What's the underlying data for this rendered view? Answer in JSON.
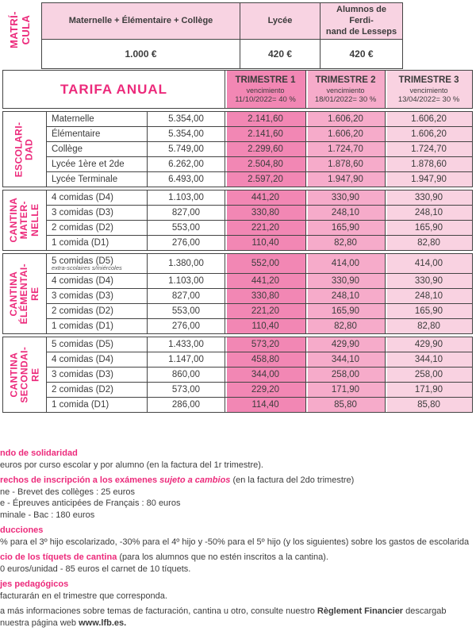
{
  "colors": {
    "brand_pink": "#EC2A7B",
    "t1_bg": "#F287B4",
    "t2_bg": "#F6ABCA",
    "t3_bg": "#F9D2E1",
    "header_bg": "#F8D3E2",
    "border": "#444444",
    "text": "#3C3C3C"
  },
  "matricula": {
    "label": "MATRÍ-\nCULA",
    "columns": [
      "Maternelle + Élémentaire + Collège",
      "Lycée",
      "Alumnos de Ferdi-\nnand de Lesseps"
    ],
    "values": [
      "1.000 €",
      "420 €",
      "420 €"
    ]
  },
  "tarifa": {
    "title": "TARIFA ANUAL",
    "trimesters": [
      {
        "name": "TRIMESTRE 1",
        "due_label": "vencimiento",
        "due": "11/10/2022= 40 %"
      },
      {
        "name": "TRIMESTRE 2",
        "due_label": "vencimiento",
        "due": "18/01/2022= 30 %"
      },
      {
        "name": "TRIMESTRE 3",
        "due_label": "vencimiento",
        "due": "13/04/2022= 30 %"
      }
    ],
    "groups": [
      {
        "label_lines": [
          "ESCOLARI-",
          "DAD"
        ],
        "rows": [
          {
            "label": "Maternelle",
            "annual": "5.354,00",
            "t1": "2.141,60",
            "t2": "1.606,20",
            "t3": "1.606,20"
          },
          {
            "label": "Élémentaire",
            "annual": "5.354,00",
            "t1": "2.141,60",
            "t2": "1.606,20",
            "t3": "1.606,20"
          },
          {
            "label": "Collège",
            "annual": "5.749,00",
            "t1": "2.299,60",
            "t2": "1.724,70",
            "t3": "1.724,70"
          },
          {
            "label": "Lycée 1ère et 2de",
            "annual": "6.262,00",
            "t1": "2.504,80",
            "t2": "1.878,60",
            "t3": "1.878,60"
          },
          {
            "label": "Lycée Terminale",
            "annual": "6.493,00",
            "t1": "2.597,20",
            "t2": "1.947,90",
            "t3": "1.947,90"
          }
        ]
      },
      {
        "label_lines": [
          "CANTINA",
          "MATER-",
          "NELLE"
        ],
        "rows": [
          {
            "label": "4 comidas (D4)",
            "annual": "1.103,00",
            "t1": "441,20",
            "t2": "330,90",
            "t3": "330,90"
          },
          {
            "label": "3 comidas (D3)",
            "annual": "827,00",
            "t1": "330,80",
            "t2": "248,10",
            "t3": "248,10"
          },
          {
            "label": "2 comidas (D2)",
            "annual": "553,00",
            "t1": "221,20",
            "t2": "165,90",
            "t3": "165,90"
          },
          {
            "label": "1 comida (D1)",
            "annual": "276,00",
            "t1": "110,40",
            "t2": "82,80",
            "t3": "82,80"
          }
        ]
      },
      {
        "label_lines": [
          "CANTINA",
          "ÉLÉMENTAI-",
          "RE"
        ],
        "rows": [
          {
            "label": "5 comidas (D5)",
            "sublabel": "extra-scolaires s/miércoles",
            "annual": "1.380,00",
            "t1": "552,00",
            "t2": "414,00",
            "t3": "414,00"
          },
          {
            "label": "4 comidas (D4)",
            "annual": "1.103,00",
            "t1": "441,20",
            "t2": "330,90",
            "t3": "330,90"
          },
          {
            "label": "3 comidas (D3)",
            "annual": "827,00",
            "t1": "330,80",
            "t2": "248,10",
            "t3": "248,10"
          },
          {
            "label": "2 comidas (D2)",
            "annual": "553,00",
            "t1": "221,20",
            "t2": "165,90",
            "t3": "165,90"
          },
          {
            "label": "1 comidas (D1)",
            "annual": "276,00",
            "t1": "110,40",
            "t2": "82,80",
            "t3": "82,80"
          }
        ]
      },
      {
        "label_lines": [
          "CANTINA",
          "SECONDAI-",
          "RE"
        ],
        "rows": [
          {
            "label": "5 comidas (D5)",
            "annual": "1.433,00",
            "t1": "573,20",
            "t2": "429,90",
            "t3": "429,90"
          },
          {
            "label": "4 comidas (D4)",
            "annual": "1.147,00",
            "t1": "458,80",
            "t2": "344,10",
            "t3": "344,10"
          },
          {
            "label": "3 comidas (D3)",
            "annual": "860,00",
            "t1": "344,00",
            "t2": "258,00",
            "t3": "258,00"
          },
          {
            "label": "2 comidas (D2)",
            "annual": "573,00",
            "t1": "229,20",
            "t2": "171,90",
            "t3": "171,90"
          },
          {
            "label": "1 comida (D1)",
            "annual": "286,00",
            "t1": "114,40",
            "t2": "85,80",
            "t3": "85,80"
          }
        ]
      }
    ]
  },
  "footer": {
    "paragraphs": [
      {
        "lines": [
          [
            {
              "t": "ndo de solidaridad",
              "s": "h"
            }
          ],
          [
            {
              "t": "euros por curso escolar y por alumno (en la factura del 1r trimestre).",
              "s": "n"
            }
          ]
        ]
      },
      {
        "lines": [
          [
            {
              "t": "rechos de inscripción a los exámenes ",
              "s": "h"
            },
            {
              "t": "sujeto a cambios",
              "s": "hi"
            },
            {
              "t": " (en la factura del 2do trimestre)",
              "s": "n"
            }
          ],
          [
            {
              "t": "ne - Brevet des collèges : 25 euros",
              "s": "n"
            }
          ],
          [
            {
              "t": "e - Épreuves anticipées de Français : 80 euros",
              "s": "n"
            }
          ],
          [
            {
              "t": "minale - Bac : 180 euros",
              "s": "n"
            }
          ]
        ]
      },
      {
        "lines": [
          [
            {
              "t": "ducciones",
              "s": "h"
            }
          ],
          [
            {
              "t": "% para el 3º hijo escolarizado, -30% para el 4º hijo y -50% para el 5º hijo (y los siguientes) sobre los gastos de escolarida",
              "s": "n"
            }
          ]
        ]
      },
      {
        "lines": [
          [
            {
              "t": "cio de los tíquets de cantina",
              "s": "h"
            },
            {
              "t": " (para los alumnos que no estén inscritos a la cantina).",
              "s": "n"
            }
          ],
          [
            {
              "t": "0 euros/unidad - 85 euros el carnet de 10 tíquets.",
              "s": "n"
            }
          ]
        ]
      },
      {
        "lines": [
          [
            {
              "t": "jes pedagógicos",
              "s": "h"
            }
          ],
          [
            {
              "t": "facturarán en el trimestre que corresponda.",
              "s": "n"
            }
          ]
        ]
      },
      {
        "lines": [
          [
            {
              "t": "a más informaciones sobre temas de facturación, cantina u otro, consulte nuestro ",
              "s": "n"
            },
            {
              "t": "Règlement Financier",
              "s": "b"
            },
            {
              "t": " descargab",
              "s": "n"
            }
          ],
          [
            {
              "t": "nuestra página web ",
              "s": "n"
            },
            {
              "t": "www.lfb.es.",
              "s": "b"
            }
          ]
        ]
      }
    ]
  }
}
